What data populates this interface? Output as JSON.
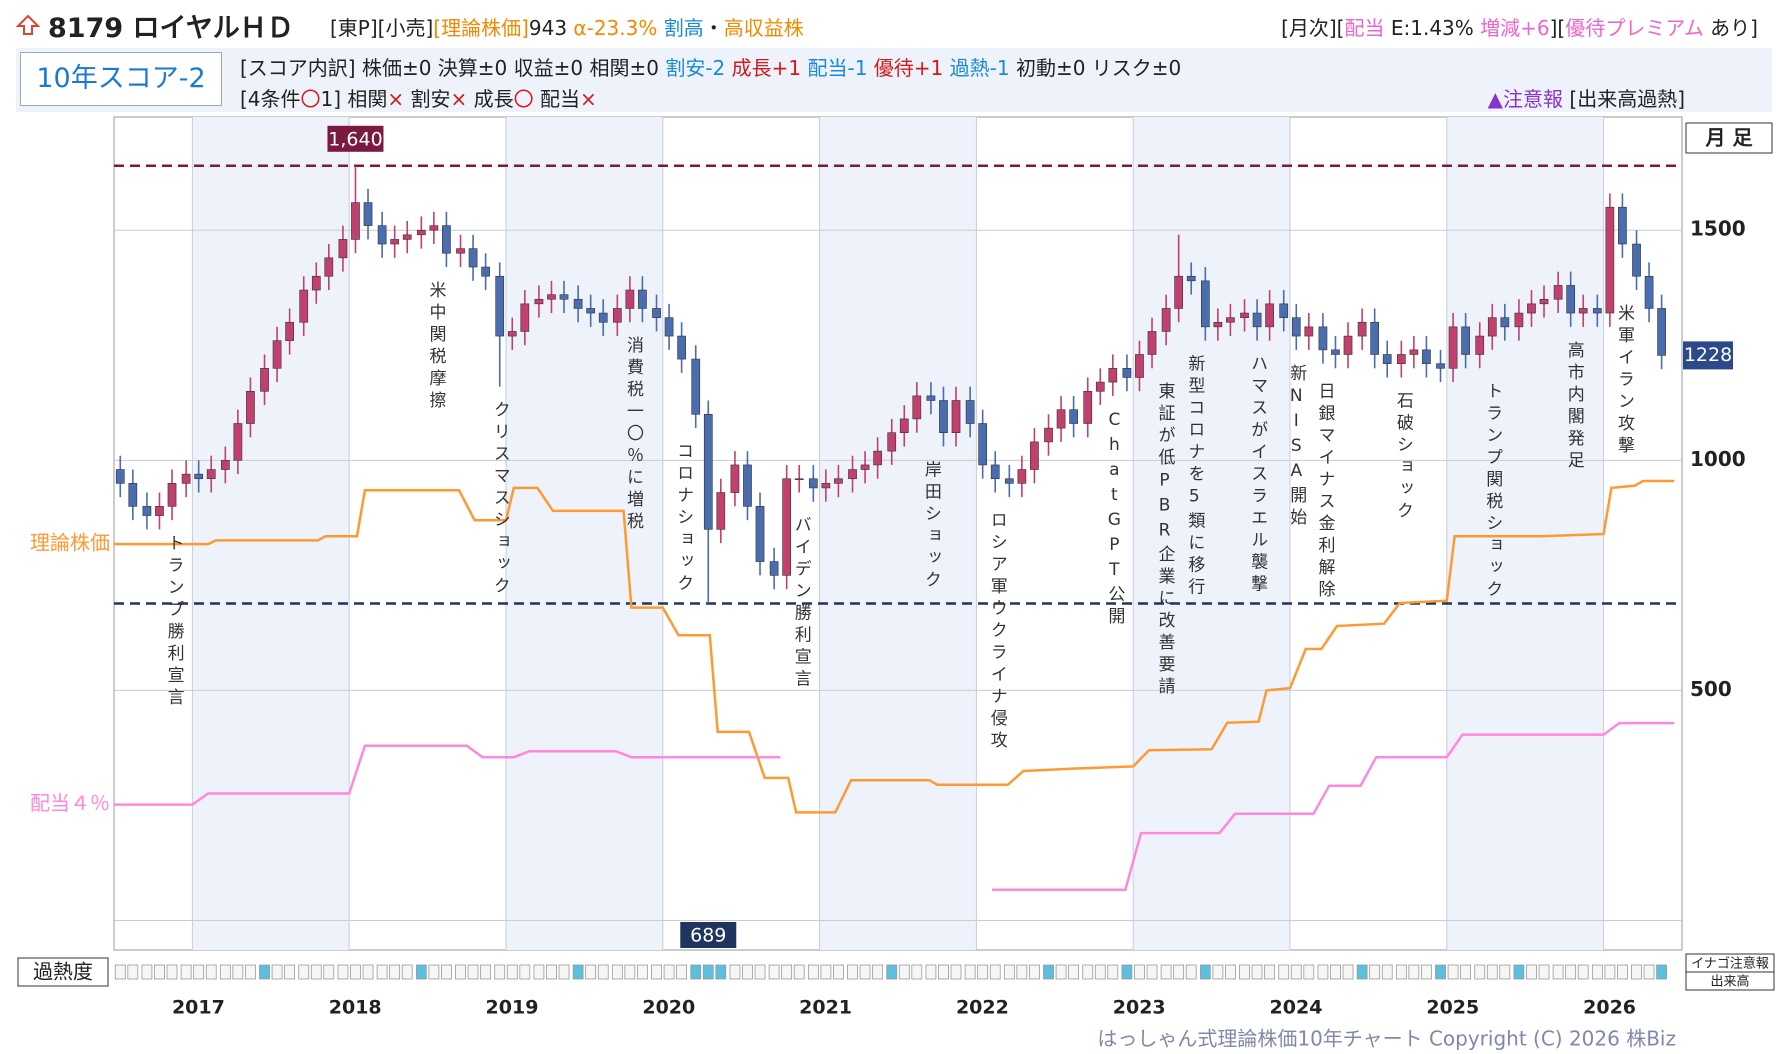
{
  "header": {
    "name": "8179 ロイヤルＨＤ",
    "title_info": [
      {
        "text": "[東P][小売]",
        "color": "#222222"
      },
      {
        "text": "[理論株価]",
        "color": "#f08a00"
      },
      {
        "text": "943",
        "color": "#222222"
      },
      {
        "text": " α-23.3%",
        "color": "#f08a00"
      },
      {
        "text": " 割高",
        "color": "#1a8ad4"
      },
      {
        "text": "・",
        "color": "#222222"
      },
      {
        "text": "高収益株",
        "color": "#f08a00"
      }
    ],
    "info_right": [
      {
        "text": "[月次][",
        "color": "#222222"
      },
      {
        "text": "配当",
        "color": "#ee66cc"
      },
      {
        "text": " E:1.43% ",
        "color": "#222222"
      },
      {
        "text": "増減+6",
        "color": "#ee66cc"
      },
      {
        "text": "][",
        "color": "#222222"
      },
      {
        "text": "優待プレミアム",
        "color": "#ee66cc"
      },
      {
        "text": " あり]",
        "color": "#222222"
      }
    ],
    "score_box": "10年スコア-2",
    "breakdown": [
      {
        "text": "[スコア内訳] 株価±0 決算±0 収益±0 相関±0 ",
        "color": "#222222"
      },
      {
        "text": "割安-2 ",
        "color": "#1a8ad4"
      },
      {
        "text": "成長+1 ",
        "color": "#d41a1a"
      },
      {
        "text": "配当-1 ",
        "color": "#1a8ad4"
      },
      {
        "text": "優待+1 ",
        "color": "#d41a1a"
      },
      {
        "text": "過熱-1 ",
        "color": "#1a8ad4"
      },
      {
        "text": "初動±0 リスク±0",
        "color": "#222222"
      }
    ],
    "conditions": [
      {
        "text": "[4条件",
        "color": "#222222"
      },
      {
        "text": "〇",
        "color": "#d41a1a"
      },
      {
        "text": "1] 相関",
        "color": "#222222"
      },
      {
        "text": "× ",
        "color": "#d41a1a"
      },
      {
        "text": "割安",
        "color": "#222222"
      },
      {
        "text": "× ",
        "color": "#d41a1a"
      },
      {
        "text": "成長",
        "color": "#222222"
      },
      {
        "text": "〇 ",
        "color": "#d41a1a"
      },
      {
        "text": "配当",
        "color": "#222222"
      },
      {
        "text": "×",
        "color": "#d41a1a"
      }
    ],
    "alert": [
      {
        "text": "▲注意報 ",
        "color": "#8833cc"
      },
      {
        "text": "[出来高過熱]",
        "color": "#222222"
      }
    ]
  },
  "chart_data": {
    "type": "candlestick",
    "period_label": "月 足",
    "xlim": [
      2016.5,
      2026.5
    ],
    "xticks": [
      2017,
      2018,
      2019,
      2020,
      2021,
      2022,
      2023,
      2024,
      2025,
      2026
    ],
    "ylim": [
      -64,
      1746
    ],
    "yticks": [
      500,
      1000,
      1500
    ],
    "grid": true,
    "up_color": "#c2406e",
    "down_color": "#4a6db0",
    "candles": {
      "x": [
        2016.54,
        2016.62,
        2016.71,
        2016.79,
        2016.87,
        2016.96,
        2017.04,
        2017.12,
        2017.21,
        2017.29,
        2017.37,
        2017.46,
        2017.54,
        2017.62,
        2017.71,
        2017.79,
        2017.87,
        2017.96,
        2018.04,
        2018.12,
        2018.21,
        2018.29,
        2018.37,
        2018.46,
        2018.54,
        2018.62,
        2018.71,
        2018.79,
        2018.87,
        2018.96,
        2019.04,
        2019.12,
        2019.21,
        2019.29,
        2019.37,
        2019.46,
        2019.54,
        2019.62,
        2019.71,
        2019.79,
        2019.87,
        2019.96,
        2020.04,
        2020.12,
        2020.21,
        2020.29,
        2020.37,
        2020.46,
        2020.54,
        2020.62,
        2020.71,
        2020.79,
        2020.87,
        2020.96,
        2021.04,
        2021.12,
        2021.21,
        2021.29,
        2021.37,
        2021.46,
        2021.54,
        2021.62,
        2021.71,
        2021.79,
        2021.87,
        2021.96,
        2022.04,
        2022.12,
        2022.21,
        2022.29,
        2022.37,
        2022.46,
        2022.54,
        2022.62,
        2022.71,
        2022.79,
        2022.87,
        2022.96,
        2023.04,
        2023.12,
        2023.21,
        2023.29,
        2023.37,
        2023.46,
        2023.54,
        2023.62,
        2023.71,
        2023.79,
        2023.87,
        2023.96,
        2024.04,
        2024.12,
        2024.21,
        2024.29,
        2024.37,
        2024.46,
        2024.54,
        2024.62,
        2024.71,
        2024.79,
        2024.87,
        2024.96,
        2025.04,
        2025.12,
        2025.21,
        2025.29,
        2025.37,
        2025.46,
        2025.54,
        2025.62,
        2025.71,
        2025.79,
        2025.87,
        2025.96,
        2026.04,
        2026.12,
        2026.21,
        2026.29,
        2026.37
      ],
      "open": [
        980,
        950,
        900,
        880,
        900,
        950,
        970,
        960,
        980,
        1000,
        1080,
        1150,
        1200,
        1260,
        1300,
        1370,
        1400,
        1440,
        1480,
        1560,
        1510,
        1470,
        1480,
        1490,
        1500,
        1510,
        1450,
        1460,
        1420,
        1400,
        1270,
        1280,
        1340,
        1350,
        1360,
        1350,
        1330,
        1320,
        1300,
        1330,
        1370,
        1330,
        1310,
        1270,
        1220,
        1100,
        850,
        930,
        990,
        900,
        780,
        750,
        960,
        960,
        940,
        950,
        960,
        980,
        990,
        1020,
        1060,
        1090,
        1140,
        1130,
        1060,
        1130,
        1080,
        990,
        960,
        950,
        980,
        1040,
        1070,
        1110,
        1080,
        1150,
        1170,
        1200,
        1180,
        1230,
        1280,
        1330,
        1400,
        1390,
        1290,
        1300,
        1310,
        1320,
        1290,
        1340,
        1310,
        1270,
        1290,
        1240,
        1230,
        1270,
        1300,
        1230,
        1210,
        1230,
        1240,
        1210,
        1200,
        1290,
        1230,
        1270,
        1310,
        1290,
        1320,
        1340,
        1350,
        1380,
        1320,
        1330,
        1320,
        1550,
        1470,
        1400,
        1330
      ],
      "high": [
        1010,
        980,
        930,
        930,
        980,
        1000,
        1000,
        1010,
        1030,
        1110,
        1180,
        1230,
        1290,
        1330,
        1400,
        1430,
        1470,
        1510,
        1640,
        1590,
        1540,
        1510,
        1520,
        1530,
        1540,
        1540,
        1490,
        1490,
        1450,
        1430,
        1310,
        1370,
        1380,
        1390,
        1390,
        1380,
        1360,
        1350,
        1360,
        1400,
        1400,
        1360,
        1340,
        1300,
        1250,
        1130,
        960,
        1020,
        1020,
        930,
        810,
        990,
        990,
        990,
        980,
        990,
        1010,
        1020,
        1050,
        1090,
        1120,
        1170,
        1170,
        1160,
        1160,
        1160,
        1110,
        1020,
        990,
        1010,
        1070,
        1100,
        1140,
        1140,
        1180,
        1200,
        1230,
        1230,
        1260,
        1310,
        1360,
        1490,
        1430,
        1420,
        1330,
        1340,
        1350,
        1350,
        1370,
        1370,
        1340,
        1320,
        1320,
        1270,
        1300,
        1330,
        1330,
        1260,
        1260,
        1270,
        1270,
        1240,
        1320,
        1320,
        1300,
        1340,
        1340,
        1350,
        1370,
        1380,
        1410,
        1410,
        1360,
        1360,
        1580,
        1580,
        1500,
        1430,
        1360
      ],
      "low": [
        920,
        870,
        850,
        850,
        870,
        920,
        930,
        930,
        950,
        970,
        1050,
        1120,
        1170,
        1230,
        1270,
        1340,
        1370,
        1410,
        1450,
        1480,
        1440,
        1440,
        1450,
        1460,
        1470,
        1420,
        1420,
        1390,
        1370,
        1160,
        1240,
        1250,
        1310,
        1320,
        1320,
        1300,
        1290,
        1270,
        1270,
        1300,
        1300,
        1280,
        1240,
        1190,
        1070,
        689,
        820,
        900,
        870,
        750,
        720,
        720,
        930,
        910,
        910,
        920,
        930,
        950,
        960,
        990,
        1030,
        1060,
        1100,
        1030,
        1030,
        1050,
        960,
        930,
        920,
        920,
        950,
        1010,
        1040,
        1050,
        1050,
        1120,
        1140,
        1150,
        1150,
        1200,
        1250,
        1300,
        1360,
        1260,
        1260,
        1270,
        1280,
        1260,
        1260,
        1280,
        1240,
        1240,
        1210,
        1200,
        1200,
        1240,
        1200,
        1180,
        1180,
        1200,
        1180,
        1170,
        1170,
        1200,
        1200,
        1240,
        1260,
        1260,
        1290,
        1310,
        1320,
        1290,
        1290,
        1290,
        1290,
        1440,
        1370,
        1300,
        1198
      ],
      "close": [
        950,
        900,
        880,
        900,
        950,
        970,
        960,
        980,
        1000,
        1080,
        1150,
        1200,
        1260,
        1300,
        1370,
        1400,
        1440,
        1480,
        1560,
        1510,
        1470,
        1480,
        1490,
        1500,
        1510,
        1450,
        1460,
        1420,
        1400,
        1270,
        1280,
        1340,
        1350,
        1360,
        1350,
        1330,
        1320,
        1300,
        1330,
        1370,
        1330,
        1310,
        1270,
        1220,
        1100,
        850,
        930,
        990,
        900,
        780,
        750,
        960,
        960,
        940,
        950,
        960,
        980,
        990,
        1020,
        1060,
        1090,
        1140,
        1130,
        1060,
        1130,
        1080,
        990,
        960,
        950,
        980,
        1040,
        1070,
        1110,
        1080,
        1150,
        1170,
        1200,
        1180,
        1230,
        1280,
        1330,
        1400,
        1390,
        1290,
        1300,
        1310,
        1320,
        1290,
        1340,
        1310,
        1270,
        1290,
        1240,
        1230,
        1270,
        1300,
        1230,
        1210,
        1230,
        1240,
        1210,
        1200,
        1290,
        1230,
        1270,
        1310,
        1290,
        1320,
        1340,
        1350,
        1380,
        1320,
        1330,
        1320,
        1550,
        1470,
        1400,
        1330,
        1228
      ]
    },
    "current_price": 1228,
    "series": [
      {
        "name": "理論株価",
        "color": "#ff9a33",
        "x": [
          2016.5,
          2017.1,
          2017.15,
          2017.8,
          2017.85,
          2018.05,
          2018.1,
          2018.7,
          2018.8,
          2019.0,
          2019.05,
          2019.2,
          2019.3,
          2019.75,
          2019.8,
          2020.0,
          2020.1,
          2020.3,
          2020.35,
          2020.55,
          2020.65,
          2020.8,
          2020.85,
          2021.1,
          2021.2,
          2021.7,
          2021.75,
          2022.2,
          2022.3,
          2022.6,
          2023.0,
          2023.1,
          2023.5,
          2023.6,
          2023.8,
          2023.85,
          2024.0,
          2024.1,
          2024.2,
          2024.3,
          2024.6,
          2024.7,
          2025.0,
          2025.05,
          2025.6,
          2026.0,
          2026.05,
          2026.2,
          2026.25,
          2026.45
        ],
        "values": [
          818,
          818,
          826,
          826,
          835,
          835,
          935,
          935,
          870,
          870,
          940,
          940,
          890,
          890,
          680,
          680,
          620,
          620,
          410,
          410,
          310,
          310,
          235,
          235,
          305,
          305,
          295,
          295,
          325,
          330,
          335,
          370,
          372,
          430,
          432,
          500,
          505,
          590,
          590,
          640,
          645,
          690,
          695,
          835,
          835,
          840,
          940,
          945,
          955,
          955
        ]
      },
      {
        "name": "配当４％",
        "color": "#ff88dd",
        "x": [
          2016.5,
          2017.0,
          2017.1,
          2018.0,
          2018.1,
          2018.75,
          2018.85,
          2019.05,
          2019.15,
          2019.7,
          2019.8,
          2020.75,
          2021.4,
          2022.1,
          2022.95,
          2023.05,
          2023.55,
          2023.65,
          2024.15,
          2024.25,
          2024.45,
          2024.55,
          2025.0,
          2025.1,
          2026.0,
          2026.1,
          2026.45
        ],
        "values": [
          252,
          252,
          276,
          276,
          380,
          380,
          355,
          355,
          368,
          368,
          355,
          355,
          null,
          67,
          67,
          190,
          190,
          232,
          232,
          293,
          293,
          355,
          355,
          404,
          404,
          429,
          429
        ]
      }
    ],
    "annotations": {
      "high": {
        "value": 1640,
        "label": "1,640",
        "color": "#7a1a40"
      },
      "low": {
        "value": 689,
        "label": "689",
        "color": "#1f3560"
      }
    },
    "events": [
      {
        "x": 2016.88,
        "text": "トランプ勝利宣言"
      },
      {
        "x": 2018.55,
        "text": "米中関税摩擦"
      },
      {
        "x": 2018.96,
        "text": "クリスマスショック"
      },
      {
        "x": 2019.81,
        "text": "消費税一〇％に増税"
      },
      {
        "x": 2020.13,
        "text": "コロナショック"
      },
      {
        "x": 2020.88,
        "text": "バイデン勝利宣言"
      },
      {
        "x": 2021.71,
        "text": "岸田ショック"
      },
      {
        "x": 2022.13,
        "text": "ロシア軍ウクライナ侵攻"
      },
      {
        "x": 2022.88,
        "text": "ChatGPT公開"
      },
      {
        "x": 2023.2,
        "text": "東証が低PBR企業に改善要請"
      },
      {
        "x": 2023.39,
        "text": "新型コロナを5類に移行"
      },
      {
        "x": 2023.79,
        "text": "ハマスがイスラエル襲撃"
      },
      {
        "x": 2024.04,
        "text": "新NISA開始"
      },
      {
        "x": 2024.22,
        "text": "日銀マイナス金利解除"
      },
      {
        "x": 2024.72,
        "text": "石破ショック"
      },
      {
        "x": 2025.29,
        "text": "トランプ関税ショック"
      },
      {
        "x": 2025.81,
        "text": "高市内閣発足"
      },
      {
        "x": 2026.13,
        "text": "米軍イラン攻撃"
      }
    ],
    "overheat": {
      "label": "過熱度",
      "color": "#5bc0de",
      "legend": [
        "イナゴ注意報",
        "出来高"
      ],
      "values": [
        0,
        0,
        0,
        0,
        0,
        0,
        0,
        0,
        0,
        0,
        0,
        1,
        0,
        0,
        0,
        0,
        0,
        0,
        0,
        0,
        0,
        0,
        0,
        1,
        0,
        0,
        0,
        0,
        0,
        0,
        0,
        0,
        0,
        0,
        0,
        1,
        0,
        0,
        0,
        0,
        0,
        0,
        0,
        0,
        1,
        1,
        1,
        0,
        0,
        0,
        0,
        0,
        0,
        0,
        0,
        0,
        0,
        0,
        0,
        1,
        0,
        0,
        0,
        0,
        0,
        0,
        0,
        0,
        0,
        0,
        0,
        1,
        0,
        0,
        0,
        0,
        0,
        1,
        0,
        0,
        0,
        0,
        0,
        1,
        0,
        0,
        0,
        0,
        0,
        0,
        0,
        0,
        0,
        0,
        0,
        1,
        0,
        0,
        0,
        0,
        0,
        1,
        0,
        0,
        0,
        0,
        0,
        1,
        0,
        0,
        0,
        0,
        0,
        0,
        0,
        0,
        0,
        0,
        1
      ]
    }
  },
  "footer": "はっしゃん式理論株価10年チャート Copyright (C) 2026 株Biz"
}
